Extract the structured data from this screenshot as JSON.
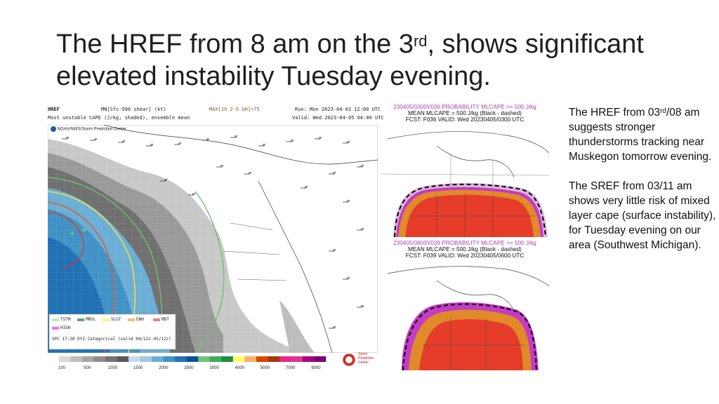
{
  "slide": {
    "title_part1": "The HREF from 8 am on the 3",
    "title_sup": "rd",
    "title_part2": ", shows significant elevated instability Tuesday evening."
  },
  "href_panel": {
    "model": "HREF",
    "product": "MN[Sfc-500 shear] (kt)",
    "uh_label": "MAX[1h 2-5 UH]>75",
    "subtitle": "Most unstable CAPE (J/kg; shaded), ensemble mean",
    "run": "Run: Mon 2023-04-03 12:00 UTC",
    "valid": "Valid: Wed 2023-04-05 04:00 UTC",
    "credit": "NOAA/NWS/Storm Prediction Center",
    "legend": {
      "items": [
        "TSTM",
        "MRGL",
        "SLGT",
        "ENH",
        "MDT",
        "HIGH"
      ],
      "colors": [
        "#c1e9c1",
        "#66a366",
        "#f6f67f",
        "#e6c27a",
        "#e67f7f",
        "#ff66ff"
      ],
      "footer": "SPC 17:30 DY2 Categorical (valid 04/12z-05/12z)"
    },
    "colorbar": {
      "labels": [
        "100",
        "500",
        "1000",
        "1500",
        "2000",
        "2500",
        "3000",
        "4000",
        "5000",
        "7000",
        "9000"
      ],
      "colors": [
        "#d9d9d9",
        "#bfbfbf",
        "#a6a6a6",
        "#8c8c8c",
        "#737373",
        "#5a5a5a",
        "#c6dbef",
        "#9ecae1",
        "#6baed6",
        "#4292c6",
        "#2171b5",
        "#08519c",
        "#74c476",
        "#41ab5d",
        "#238b45",
        "#ffff66",
        "#fdae6b",
        "#d94801",
        "#a63603",
        "#e7298a",
        "#dd3497",
        "#ae017e",
        "#7a0177"
      ]
    },
    "logo_text": "Storm Prediction Center"
  },
  "sref_top": {
    "line1": "230405/0300V036 PROBABILITY MLCAPE >= 500 J/kg",
    "line2": "MEAN MLCAPE = 500 J/kg (Black - dashed)",
    "line3": "FCST: F036  VALID: Wed  20230405/0300 UTC"
  },
  "sref_bottom": {
    "line1": "230405/0600V039 PROBABILITY MLCAPE >= 500 J/kg",
    "line2": "MEAN MLCAPE = 500 J/kg (Black - dashed)",
    "line3": "FCST: F039  VALID: Wed  20230405/0600 UTC"
  },
  "side_text": {
    "p1_a": "The HREF from 03",
    "p1_sup": "rd",
    "p1_b": "/08 am suggests stronger thunderstorms tracking near Muskegon tomorrow evening.",
    "p2": "The SREF from 03/11 am shows very little risk of mixed layer cape (surface instability), for Tuesday evening on our area (Southwest Michigan)."
  }
}
